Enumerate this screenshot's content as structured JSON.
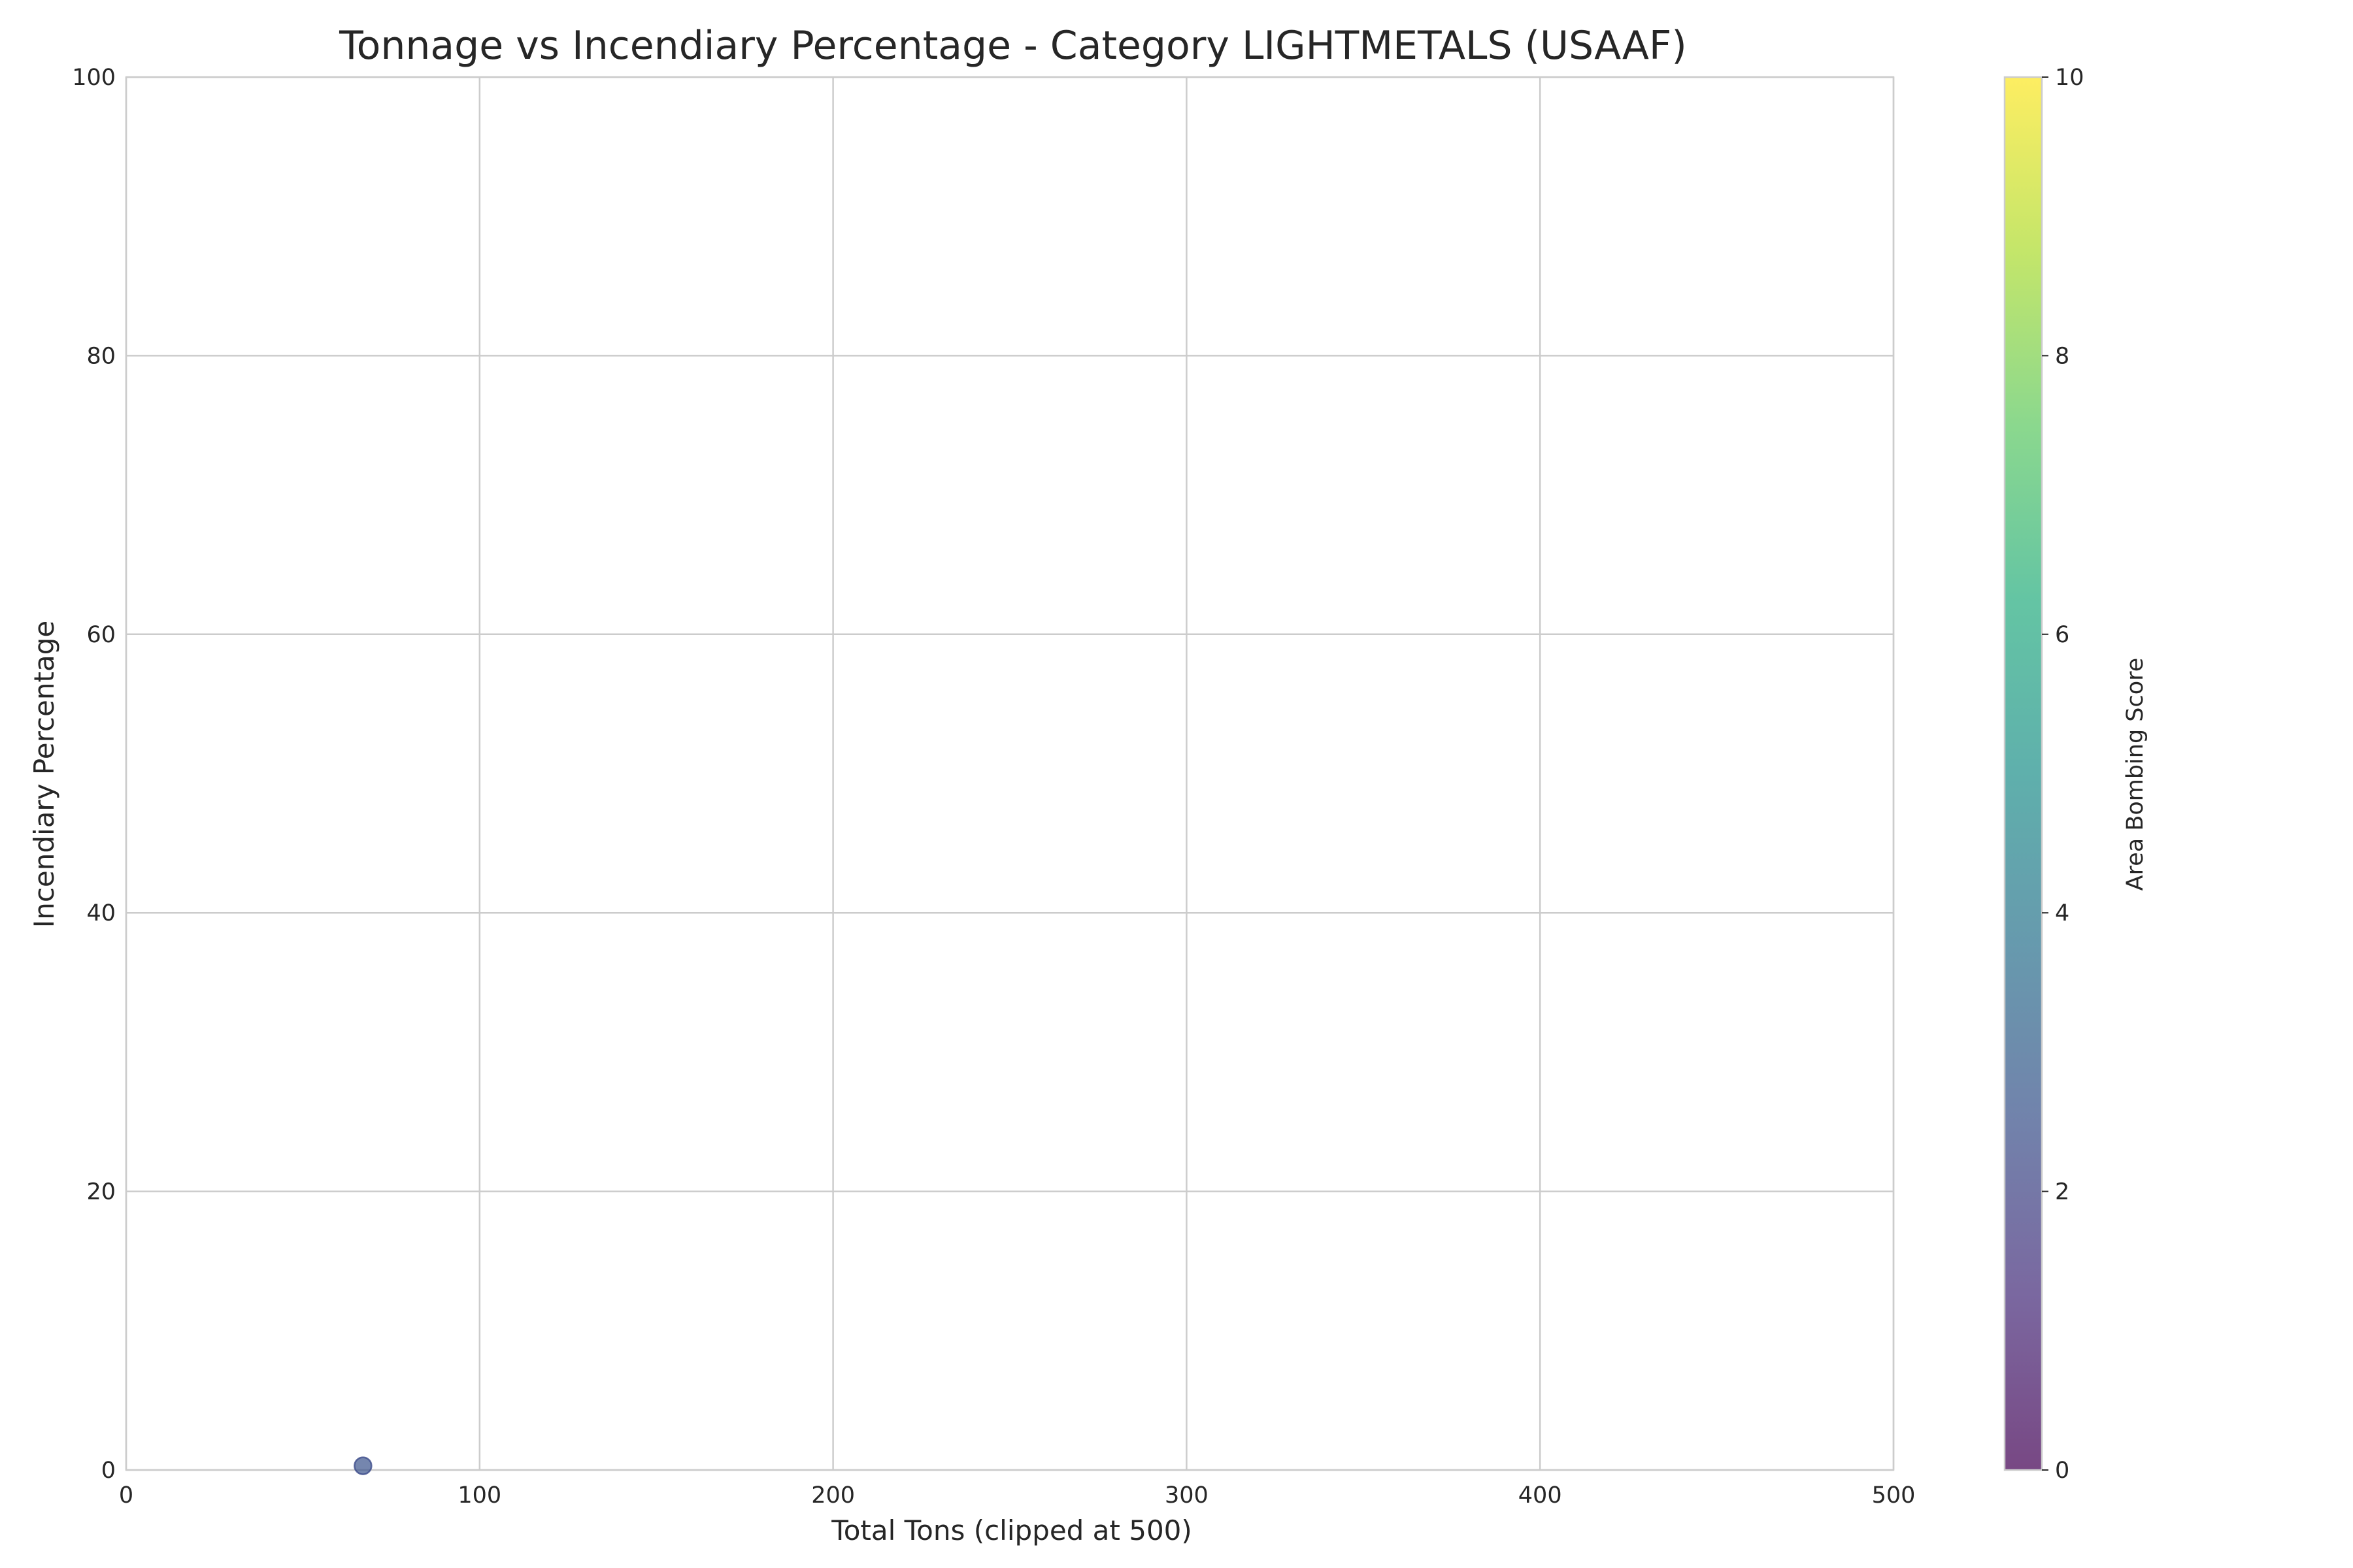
{
  "chart_data": {
    "type": "scatter",
    "title": "Tonnage vs Incendiary Percentage - Category LIGHTMETALS (USAAF)",
    "xlabel": "Total Tons (clipped at 500)",
    "ylabel": "Incendiary Percentage",
    "xlim": [
      0,
      500
    ],
    "ylim": [
      0,
      100
    ],
    "x_ticks": [
      "0",
      "100",
      "200",
      "300",
      "400",
      "500"
    ],
    "y_ticks": [
      "0",
      "20",
      "40",
      "60",
      "80",
      "100"
    ],
    "grid": true,
    "colormap": "viridis",
    "color_alpha": 0.7,
    "points": [
      {
        "x": 67,
        "y": 0.3,
        "color_value": 2.5
      }
    ],
    "colorbar": {
      "label": "Area Bombing Score",
      "range": [
        0,
        10
      ],
      "ticks": [
        "0",
        "2",
        "4",
        "6",
        "8",
        "10"
      ]
    }
  }
}
